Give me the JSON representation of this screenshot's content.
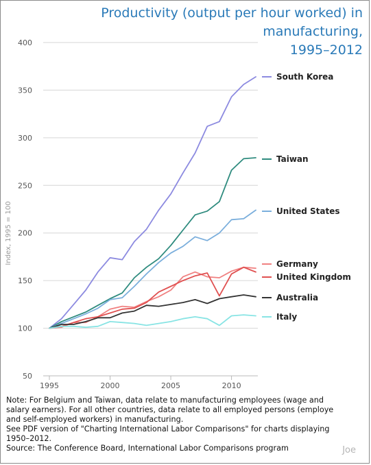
{
  "title_lines": [
    "Productivity (output per hour worked) in manufacturing,",
    "1995–2012"
  ],
  "notes": [
    "Note: For Belgium and Taiwan, data relate to manufacturing employees (wage and",
    "salary earners). For all other countries, data relate to all employed persons (employe",
    "and self-employed workers) in manufacturing.",
    "See PDF version of \"Charting International Labor Comparisons\" for charts displaying",
    "1950–2012.",
    "Source: The Conference Board, International Labor Comparisons program"
  ],
  "watermark": "Joe",
  "chart_data": {
    "type": "line",
    "title": "Productivity (output per hour worked) in manufacturing, 1995–2012",
    "ylabel": "Index, 1995 = 100",
    "xlabel": "",
    "ylim": [
      50,
      400
    ],
    "xlim": [
      1995,
      2012
    ],
    "yticks": [
      50,
      100,
      150,
      200,
      250,
      300,
      350,
      400
    ],
    "xticks": [
      1995,
      2000,
      2005,
      2010
    ],
    "grid": "horizontal",
    "legend": "labels at right end of each line",
    "x": [
      1995,
      1996,
      1997,
      1998,
      1999,
      2000,
      2001,
      2002,
      2003,
      2004,
      2005,
      2006,
      2007,
      2008,
      2009,
      2010,
      2011,
      2012
    ],
    "series": [
      {
        "name": "South Korea",
        "color": "#8c8ae0",
        "values": [
          100,
          110,
          125,
          140,
          159,
          174,
          172,
          191,
          204,
          224,
          241,
          263,
          284,
          312,
          317,
          343,
          356,
          364
        ]
      },
      {
        "name": "Taiwan",
        "color": "#2e8b7e",
        "values": [
          100,
          107,
          112,
          117,
          124,
          131,
          137,
          153,
          164,
          173,
          187,
          203,
          219,
          223,
          233,
          266,
          278,
          279
        ]
      },
      {
        "name": "United States",
        "color": "#7aaedc",
        "values": [
          100,
          105,
          110,
          115,
          121,
          130,
          132,
          144,
          157,
          169,
          179,
          186,
          196,
          192,
          200,
          214,
          215,
          224
        ]
      },
      {
        "name": "Germany",
        "color": "#f08080",
        "values": [
          100,
          101,
          106,
          106,
          112,
          120,
          123,
          122,
          128,
          133,
          140,
          154,
          159,
          154,
          153,
          160,
          164,
          163
        ]
      },
      {
        "name": "United Kingdom",
        "color": "#e05050",
        "values": [
          100,
          102,
          106,
          110,
          112,
          116,
          120,
          121,
          127,
          138,
          144,
          150,
          155,
          158,
          134,
          157,
          164,
          159
        ]
      },
      {
        "name": "Australia",
        "color": "#333333",
        "values": [
          100,
          104,
          104,
          107,
          111,
          111,
          116,
          118,
          124,
          123,
          125,
          127,
          130,
          126,
          131,
          133,
          135,
          133
        ]
      },
      {
        "name": "Italy",
        "color": "#88e4e4",
        "values": [
          100,
          102,
          102,
          101,
          102,
          107,
          106,
          105,
          103,
          105,
          107,
          110,
          112,
          110,
          103,
          113,
          114,
          113
        ]
      }
    ]
  }
}
